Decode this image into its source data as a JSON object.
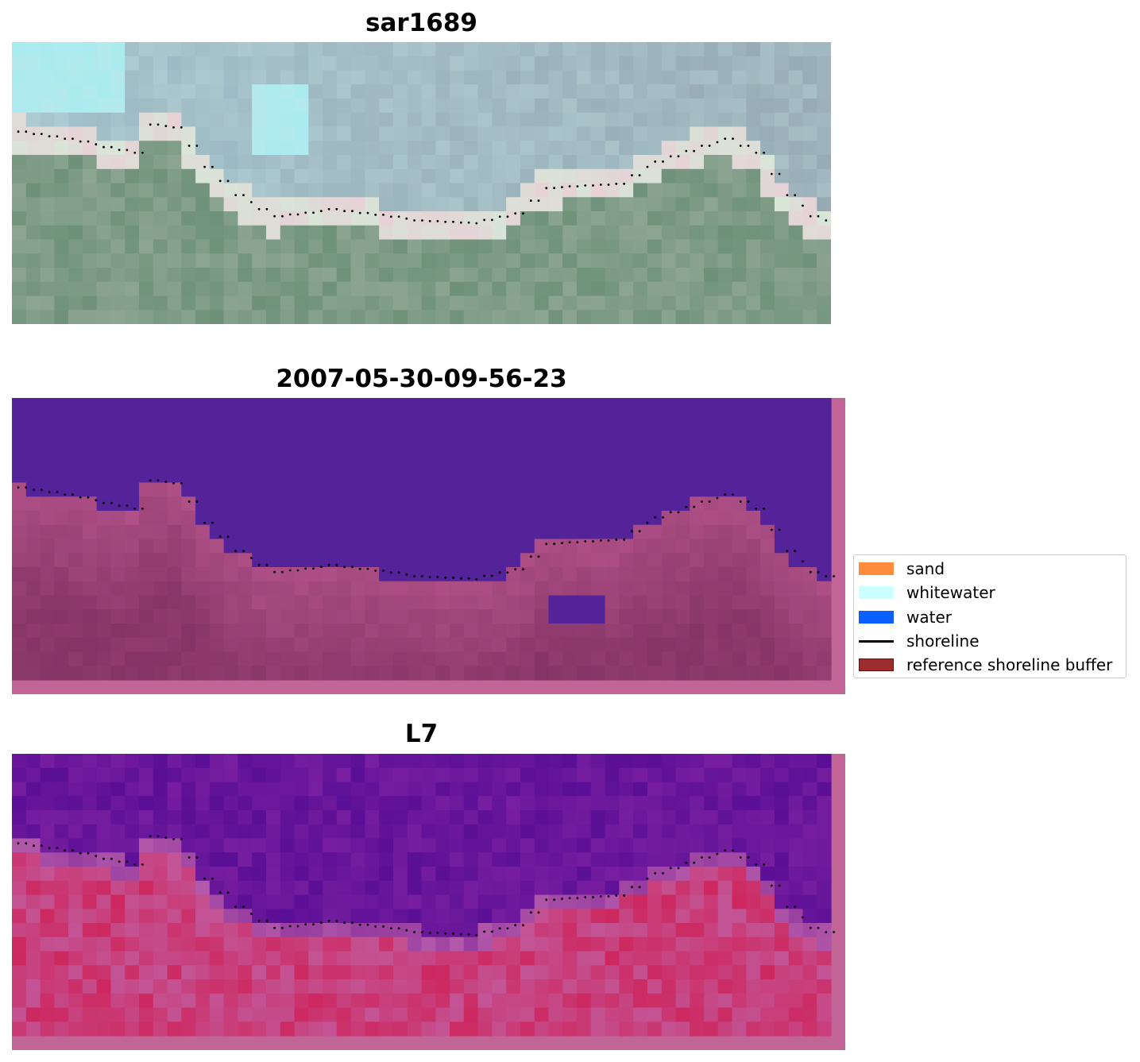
{
  "panels": [
    {
      "title": "sar1689",
      "kind": "rgb"
    },
    {
      "title": "2007-05-30-09-56-23",
      "kind": "classified"
    },
    {
      "title": "L7",
      "kind": "index"
    }
  ],
  "legend": {
    "items": [
      {
        "label": "sand",
        "color": "#ff8c3a",
        "type": "patch"
      },
      {
        "label": "whitewater",
        "color": "#ccffff",
        "type": "patch"
      },
      {
        "label": "water",
        "color": "#0a60ff",
        "type": "patch"
      },
      {
        "label": "shoreline",
        "color": "#000000",
        "type": "line"
      },
      {
        "label": "reference shoreline buffer",
        "color": "#9e2b2b",
        "type": "patch"
      }
    ]
  },
  "colors": {
    "buffer": "#c06595",
    "classified_water": "#542399",
    "classified_land": "#a04a80",
    "index_water": "#5a1098",
    "index_land": "#d02a60"
  }
}
